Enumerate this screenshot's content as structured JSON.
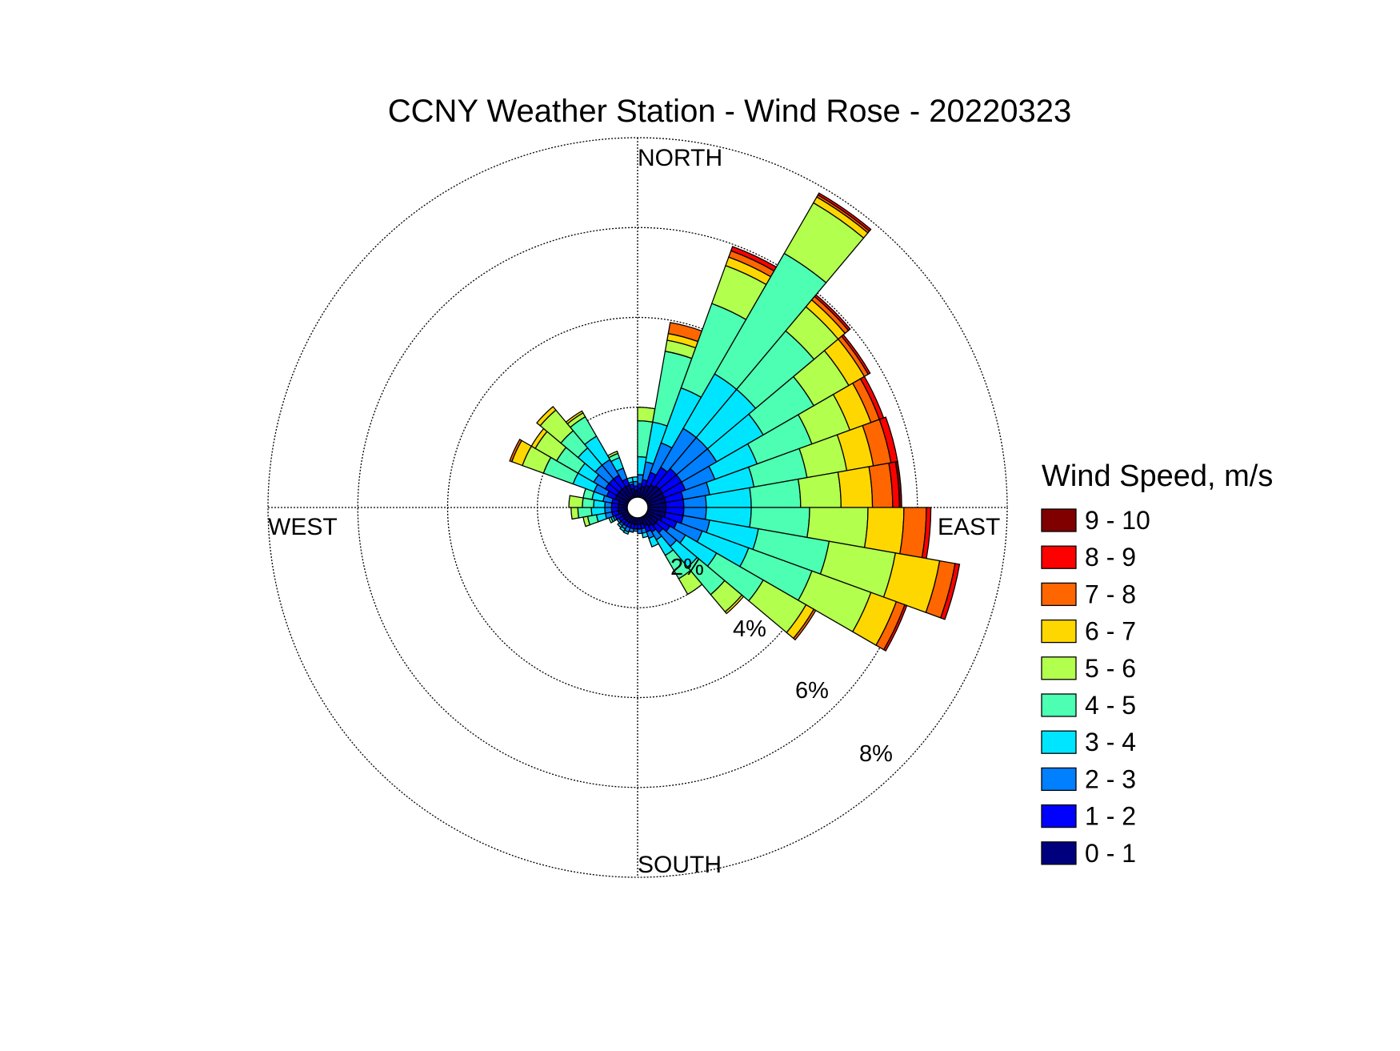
{
  "chart_data": {
    "type": "wind-rose",
    "title": "CCNY Weather Station - Wind Rose - 20220323",
    "direction_labels": {
      "north": "NORTH",
      "east": "EAST",
      "south": "SOUTH",
      "west": "WEST"
    },
    "ring_values": [
      2,
      4,
      6,
      8
    ],
    "ring_labels": [
      "2%",
      "4%",
      "6%",
      "8%"
    ],
    "rmax": 8,
    "legend_title": "Wind Speed, m/s",
    "legend_position": "right",
    "bins": [
      {
        "label": "0 - 1",
        "color": "#00007f"
      },
      {
        "label": "1 - 2",
        "color": "#0000ff"
      },
      {
        "label": "2 - 3",
        "color": "#007fff"
      },
      {
        "label": "3 - 4",
        "color": "#00e5ff"
      },
      {
        "label": "4 - 5",
        "color": "#4dffb3"
      },
      {
        "label": "5 - 6",
        "color": "#b3ff4d"
      },
      {
        "label": "6 - 7",
        "color": "#ffd700"
      },
      {
        "label": "7 - 8",
        "color": "#ff6600"
      },
      {
        "label": "8 - 9",
        "color": "#ff0000"
      },
      {
        "label": "9 - 10",
        "color": "#800000"
      }
    ],
    "sector_width_deg": 10,
    "sectors": [
      {
        "dir": 5,
        "cum": [
          0.2,
          0.3,
          0.5,
          0.9,
          1.7,
          2.0
        ]
      },
      {
        "dir": 15,
        "cum": [
          0.25,
          0.4,
          0.8,
          1.7,
          3.3,
          3.55,
          3.7,
          3.95
        ]
      },
      {
        "dir": 25,
        "cum": [
          0.3,
          0.6,
          1.3,
          2.6,
          4.6,
          5.5,
          5.7,
          5.85,
          5.95
        ]
      },
      {
        "dir": 35,
        "cum": [
          0.35,
          0.8,
          1.8,
          3.2,
          6.3,
          7.6,
          7.75,
          7.8,
          7.85
        ]
      },
      {
        "dir": 45,
        "cum": [
          0.4,
          0.9,
          1.8,
          3.2,
          4.9,
          5.6,
          5.8,
          5.9,
          5.95
        ]
      },
      {
        "dir": 55,
        "cum": [
          0.4,
          0.9,
          1.8,
          3.0,
          4.3,
          5.2,
          5.6,
          5.7,
          5.75
        ]
      },
      {
        "dir": 65,
        "cum": [
          0.4,
          0.9,
          1.6,
          2.6,
          3.9,
          4.8,
          5.3,
          5.5,
          5.6
        ]
      },
      {
        "dir": 75,
        "cum": [
          0.4,
          0.8,
          1.4,
          2.4,
          3.6,
          4.5,
          5.1,
          5.5,
          5.65
        ]
      },
      {
        "dir": 85,
        "cum": [
          0.4,
          0.8,
          1.3,
          2.3,
          3.4,
          4.3,
          5.0,
          5.45,
          5.6,
          5.65
        ]
      },
      {
        "dir": 95,
        "cum": [
          0.4,
          0.8,
          1.3,
          2.3,
          3.6,
          4.9,
          5.7,
          6.2,
          6.3
        ]
      },
      {
        "dir": 105,
        "cum": [
          0.4,
          0.8,
          1.4,
          2.5,
          4.1,
          5.6,
          6.6,
          6.95,
          7.05
        ]
      },
      {
        "dir": 115,
        "cum": [
          0.35,
          0.7,
          1.3,
          2.4,
          3.9,
          5.3,
          5.9,
          6.1,
          6.15
        ]
      },
      {
        "dir": 125,
        "cum": [
          0.3,
          0.6,
          1.0,
          1.8,
          3.0,
          4.1,
          4.3,
          4.35
        ]
      },
      {
        "dir": 135,
        "cum": [
          0.3,
          0.5,
          0.9,
          1.5,
          2.3,
          2.8,
          2.85
        ]
      },
      {
        "dir": 145,
        "cum": [
          0.25,
          0.4,
          0.6,
          1.0,
          1.6,
          2.0
        ]
      },
      {
        "dir": 155,
        "cum": [
          0.2,
          0.35,
          0.5,
          0.7
        ]
      },
      {
        "dir": 165,
        "cum": [
          0.15,
          0.25,
          0.35,
          0.45
        ]
      },
      {
        "dir": 175,
        "cum": [
          0.15,
          0.25,
          0.35
        ]
      },
      {
        "dir": 185,
        "cum": [
          0.15,
          0.25,
          0.3
        ]
      },
      {
        "dir": 195,
        "cum": [
          0.15,
          0.25,
          0.33
        ]
      },
      {
        "dir": 205,
        "cum": [
          0.15,
          0.25,
          0.35,
          0.4
        ]
      },
      {
        "dir": 215,
        "cum": [
          0.15,
          0.25,
          0.32,
          0.38
        ]
      },
      {
        "dir": 225,
        "cum": [
          0.15,
          0.25,
          0.3,
          0.35
        ]
      },
      {
        "dir": 235,
        "cum": [
          0.15,
          0.25,
          0.3
        ]
      },
      {
        "dir": 245,
        "cum": [
          0.15,
          0.3,
          0.35,
          0.4,
          0.45
        ]
      },
      {
        "dir": 255,
        "cum": [
          0.2,
          0.35,
          0.5,
          0.7,
          0.9,
          1.0
        ]
      },
      {
        "dir": 265,
        "cum": [
          0.2,
          0.35,
          0.5,
          0.8,
          1.1,
          1.25
        ]
      },
      {
        "dir": 275,
        "cum": [
          0.2,
          0.35,
          0.5,
          0.75,
          1.0,
          1.3
        ]
      },
      {
        "dir": 285,
        "cum": [
          0.2,
          0.35,
          0.55,
          0.8,
          1.0
        ]
      },
      {
        "dir": 295,
        "cum": [
          0.3,
          0.5,
          0.8,
          1.3,
          2.0,
          2.5,
          2.75,
          2.8
        ]
      },
      {
        "dir": 305,
        "cum": [
          0.3,
          0.6,
          0.9,
          1.3,
          1.85,
          2.4,
          2.5
        ]
      },
      {
        "dir": 315,
        "cum": [
          0.3,
          0.6,
          1.0,
          1.5,
          2.0,
          2.6,
          2.7
        ]
      },
      {
        "dir": 325,
        "cum": [
          0.3,
          0.6,
          1.0,
          1.6,
          2.1,
          2.2,
          2.25
        ]
      },
      {
        "dir": 335,
        "cum": [
          0.3,
          0.45,
          0.7,
          0.95,
          1.05,
          1.1
        ]
      },
      {
        "dir": 345,
        "cum": [
          0.2,
          0.3,
          0.35,
          0.45
        ]
      },
      {
        "dir": 355,
        "cum": [
          0.15,
          0.25,
          0.35,
          0.45
        ]
      }
    ]
  }
}
